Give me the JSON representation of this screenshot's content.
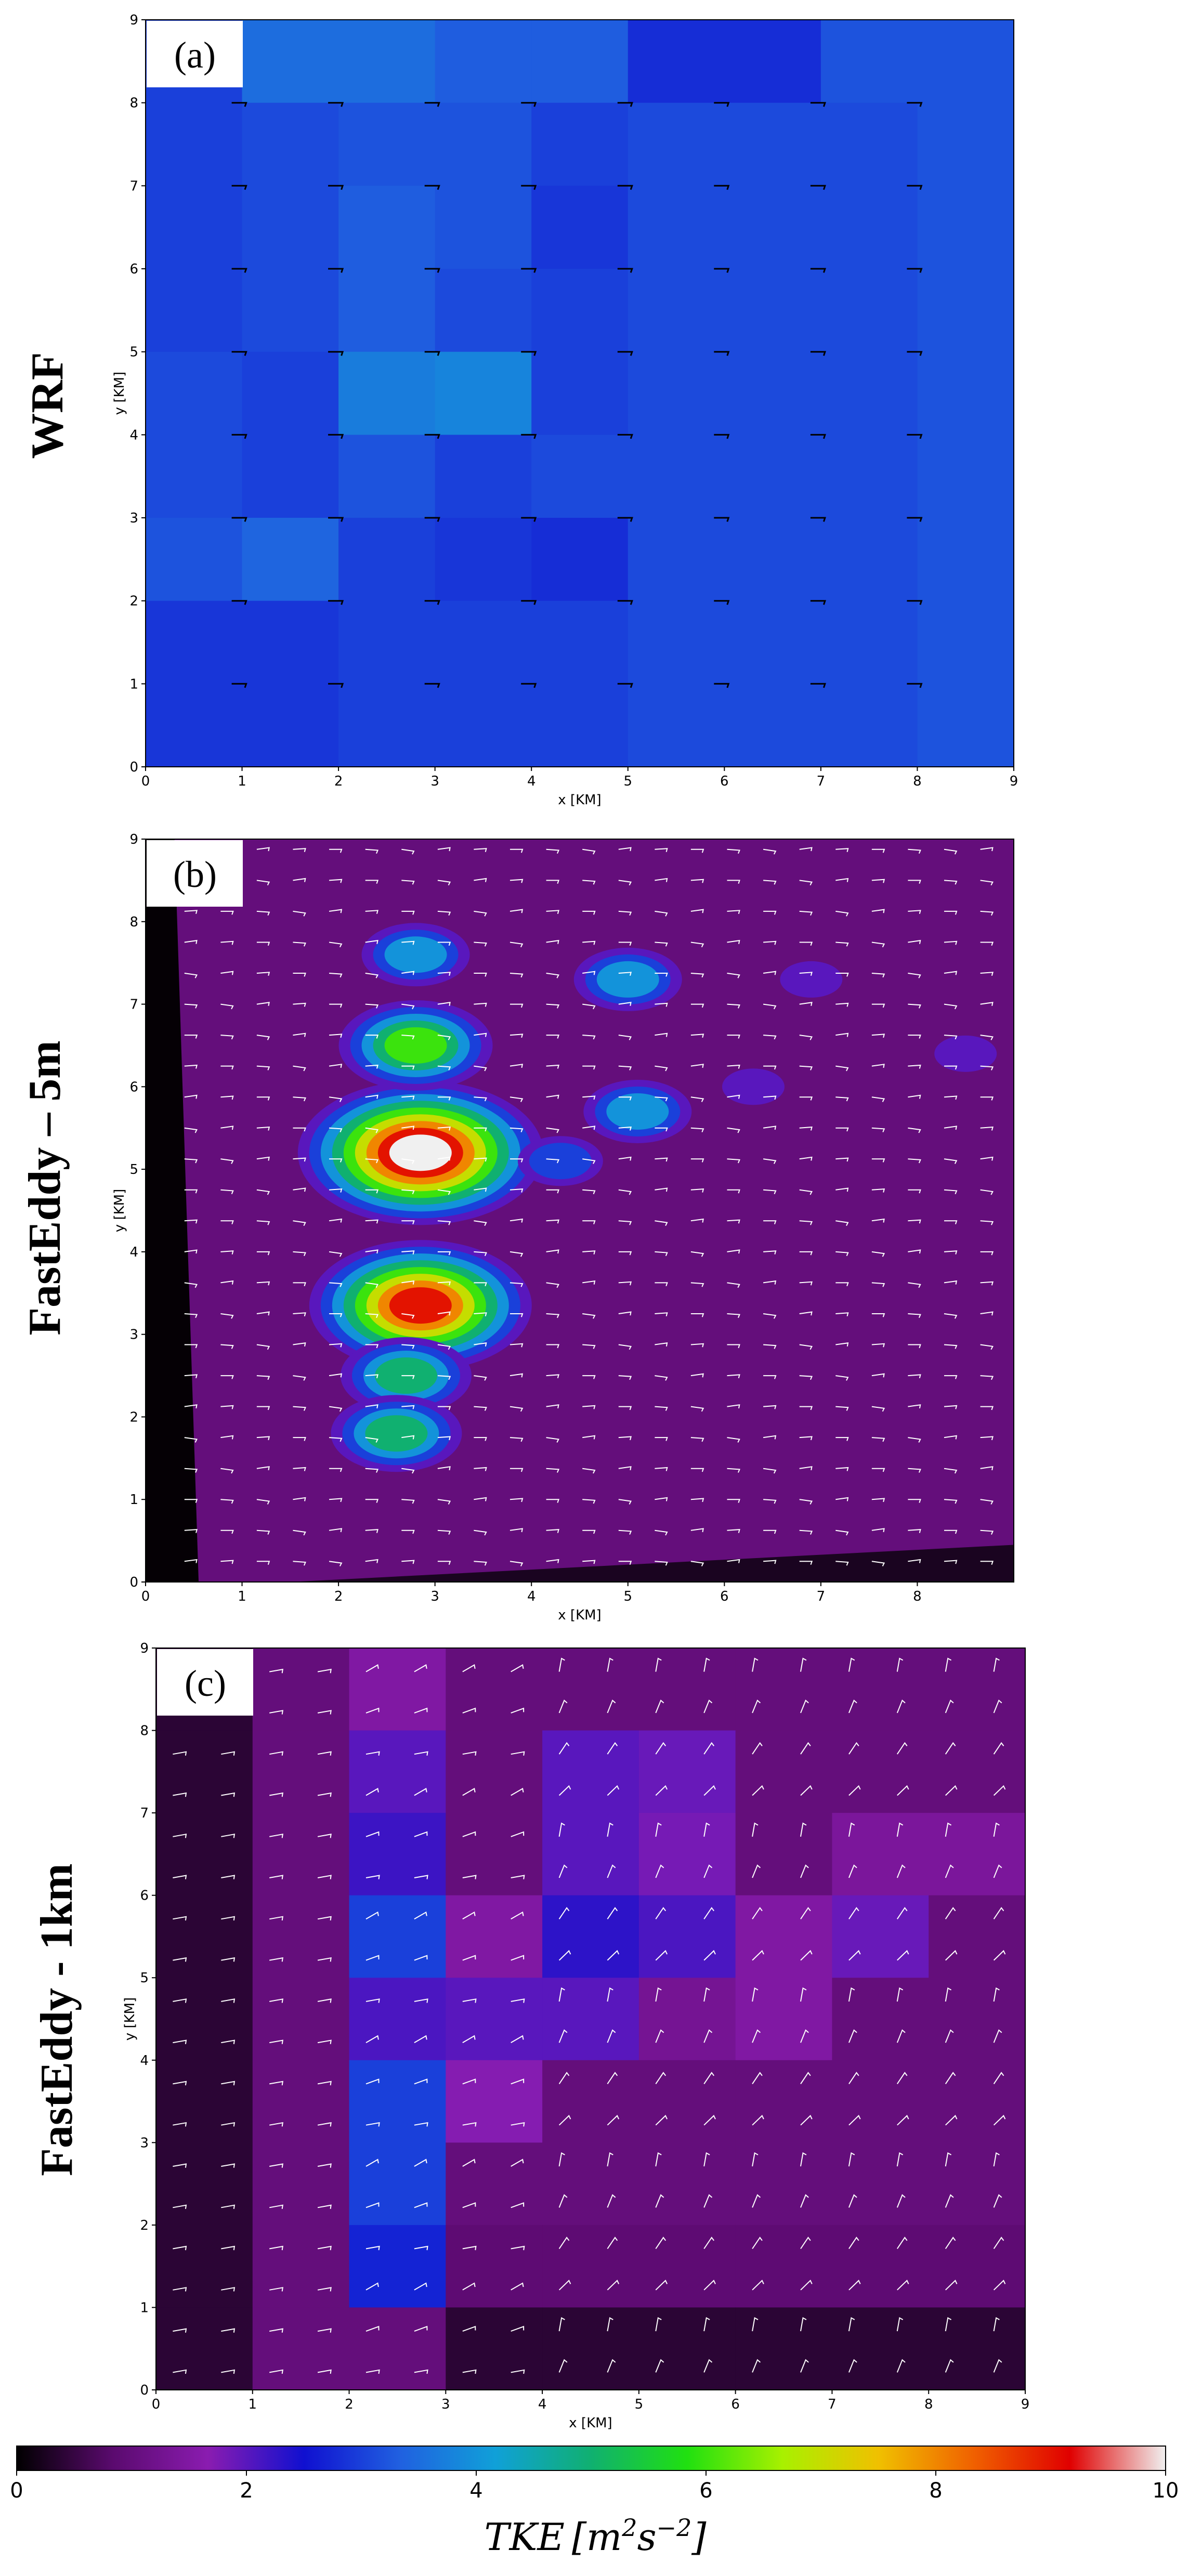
{
  "figure": {
    "panels": [
      {
        "id": "a",
        "letter": "(a)",
        "row_label": "WRF",
        "xlabel": "x [KM]",
        "ylabel": "y [KM]"
      },
      {
        "id": "b",
        "letter": "(b)",
        "row_label": "FastEddy – 5m",
        "xlabel": "x [KM]",
        "ylabel": "y [KM]"
      },
      {
        "id": "c",
        "letter": "(c)",
        "row_label": "FastEddy - 1km",
        "xlabel": "x [KM]",
        "ylabel": "y [KM]"
      }
    ],
    "colorbar": {
      "title": "TKE [m²s⁻²]",
      "title_plain": "TKE",
      "unit_base": "[m",
      "unit_sup1": "2",
      "unit_mid": "s",
      "unit_sup2": "−2",
      "unit_end": "]",
      "range": [
        0,
        10
      ],
      "ticks": [
        "0",
        "2",
        "4",
        "6",
        "8",
        "10"
      ],
      "colors": {
        "stops": [
          "#000000",
          "#5a0a6e",
          "#8a1cb0",
          "#1010d0",
          "#2060e0",
          "#10a0d8",
          "#10b070",
          "#20e010",
          "#a8f000",
          "#f0c000",
          "#f06000",
          "#e00000",
          "#f0f0f0"
        ]
      }
    }
  },
  "chart_data": [
    {
      "type": "heatmap",
      "title": "(a)",
      "row_label": "WRF",
      "xlabel": "x [KM]",
      "ylabel": "y [KM]",
      "xlim": [
        0,
        9
      ],
      "ylim": [
        0,
        9
      ],
      "xticks": [
        "0",
        "1",
        "2",
        "3",
        "4",
        "5",
        "6",
        "7",
        "8",
        "9"
      ],
      "yticks": [
        "0",
        "1",
        "2",
        "3",
        "4",
        "5",
        "6",
        "7",
        "8",
        "9"
      ],
      "grid_cols": 9,
      "grid_rows": 9,
      "tke_grid_rows_top_to_bottom": [
        [
          3.0,
          3.5,
          3.5,
          3.3,
          3.3,
          2.8,
          2.8,
          3.2,
          3.2
        ],
        [
          3.0,
          3.1,
          3.2,
          3.2,
          3.0,
          3.1,
          3.1,
          3.1,
          3.2
        ],
        [
          3.0,
          3.1,
          3.3,
          3.2,
          2.9,
          3.1,
          3.1,
          3.1,
          3.2
        ],
        [
          3.0,
          3.1,
          3.3,
          3.1,
          3.0,
          3.1,
          3.1,
          3.1,
          3.2
        ],
        [
          3.1,
          3.0,
          3.7,
          3.8,
          3.0,
          3.1,
          3.1,
          3.1,
          3.2
        ],
        [
          3.1,
          3.0,
          3.2,
          3.0,
          3.1,
          3.1,
          3.1,
          3.1,
          3.2
        ],
        [
          3.2,
          3.4,
          3.0,
          2.9,
          2.8,
          3.1,
          3.1,
          3.1,
          3.2
        ],
        [
          2.9,
          2.9,
          3.0,
          3.0,
          3.0,
          3.1,
          3.1,
          3.1,
          3.2
        ],
        [
          2.9,
          2.9,
          3.0,
          3.0,
          3.0,
          3.1,
          3.1,
          3.1,
          3.2
        ]
      ],
      "wind_barbs": "west-to-east flow, black barbs at 1 km spacing"
    },
    {
      "type": "heatmap",
      "title": "(b)",
      "row_label": "FastEddy – 5m",
      "xlabel": "x [KM]",
      "ylabel": "y [KM]",
      "xlim": [
        0,
        9
      ],
      "ylim": [
        0,
        9
      ],
      "xticks": [
        "0",
        "1",
        "2",
        "3",
        "4",
        "5",
        "6",
        "7",
        "8"
      ],
      "yticks": [
        "0",
        "1",
        "2",
        "3",
        "4",
        "5",
        "6",
        "7",
        "8",
        "9"
      ],
      "background_tke": 1.0,
      "hotspots": [
        {
          "x": 2.85,
          "y": 5.2,
          "peak_tke": 10.0
        },
        {
          "x": 2.85,
          "y": 3.35,
          "peak_tke": 9.5
        },
        {
          "x": 2.8,
          "y": 6.5,
          "peak_tke": 6.5
        },
        {
          "x": 2.7,
          "y": 2.5,
          "peak_tke": 5.5
        },
        {
          "x": 2.6,
          "y": 1.8,
          "peak_tke": 5.0
        },
        {
          "x": 2.8,
          "y": 7.6,
          "peak_tke": 4.5
        },
        {
          "x": 5.0,
          "y": 7.3,
          "peak_tke": 4.5
        },
        {
          "x": 5.1,
          "y": 5.7,
          "peak_tke": 4.5
        },
        {
          "x": 4.3,
          "y": 5.1,
          "peak_tke": 3.0
        },
        {
          "x": 6.3,
          "y": 6.0,
          "peak_tke": 2.5
        },
        {
          "x": 8.5,
          "y": 6.4,
          "peak_tke": 2.5
        },
        {
          "x": 6.9,
          "y": 7.3,
          "peak_tke": 2.0
        }
      ],
      "wind_barbs": "white barbs, westerly flow"
    },
    {
      "type": "heatmap",
      "title": "(c)",
      "row_label": "FastEddy - 1km",
      "xlabel": "x [KM]",
      "ylabel": "y [KM]",
      "xlim": [
        0,
        9
      ],
      "ylim": [
        0,
        9
      ],
      "xticks": [
        "0",
        "1",
        "2",
        "3",
        "4",
        "5",
        "6",
        "7",
        "8",
        "9"
      ],
      "yticks": [
        "0",
        "1",
        "2",
        "3",
        "4",
        "5",
        "6",
        "7",
        "8",
        "9"
      ],
      "grid_cols": 9,
      "grid_rows": 9,
      "tke_grid_rows_top_to_bottom": [
        [
          0.4,
          1.0,
          1.5,
          1.0,
          1.0,
          1.0,
          1.0,
          1.0,
          1.0
        ],
        [
          0.4,
          1.0,
          2.0,
          1.0,
          2.0,
          1.9,
          1.0,
          1.0,
          1.0
        ],
        [
          0.4,
          1.0,
          2.2,
          1.0,
          2.0,
          1.8,
          1.0,
          1.4,
          1.4
        ],
        [
          0.4,
          1.0,
          3.0,
          1.5,
          2.3,
          2.1,
          1.5,
          1.9,
          1.0
        ],
        [
          0.4,
          1.0,
          2.1,
          2.0,
          2.0,
          1.3,
          1.5,
          1.0,
          1.0
        ],
        [
          0.4,
          1.0,
          3.0,
          1.7,
          1.0,
          1.0,
          1.0,
          1.0,
          1.0
        ],
        [
          0.4,
          1.0,
          3.0,
          1.0,
          1.0,
          1.0,
          1.0,
          1.0,
          1.0
        ],
        [
          0.4,
          1.0,
          2.7,
          0.9,
          0.9,
          0.9,
          0.9,
          0.9,
          0.9
        ],
        [
          0.4,
          1.0,
          1.0,
          0.4,
          0.4,
          0.4,
          0.4,
          0.4,
          0.4
        ]
      ],
      "wind_barbs": "white barbs, westerly flow"
    }
  ]
}
